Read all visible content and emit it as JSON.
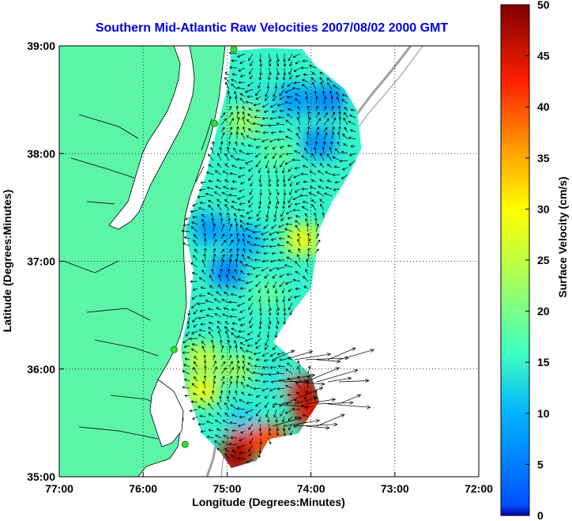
{
  "chart_data": {
    "type": "heatmap",
    "title": "Southern Mid-Atlantic Raw Velocities 2007/08/02 2000 GMT",
    "xlabel": "Longitude (Degrees:Minutes)",
    "ylabel": "Latitude (Degrees:Minutes)",
    "x_ticks": [
      {
        "value": -77,
        "label": "77:00"
      },
      {
        "value": -76,
        "label": "76:00"
      },
      {
        "value": -75,
        "label": "75:00"
      },
      {
        "value": -74,
        "label": "74:00"
      },
      {
        "value": -73,
        "label": "73:00"
      },
      {
        "value": -72,
        "label": "72:00"
      }
    ],
    "y_ticks": [
      {
        "value": 35,
        "label": "35:00"
      },
      {
        "value": 36,
        "label": "36:00"
      },
      {
        "value": 37,
        "label": "37:00"
      },
      {
        "value": 38,
        "label": "38:00"
      },
      {
        "value": 39,
        "label": "39:00"
      }
    ],
    "xlim": [
      -77,
      -72
    ],
    "ylim": [
      35,
      39
    ],
    "grid": "dotted",
    "colorbar": {
      "label": "Surface Velocity (cm/s)",
      "min": 0,
      "max": 50,
      "ticks": [
        "0",
        "5",
        "10",
        "15",
        "20",
        "25",
        "30",
        "35",
        "40",
        "45",
        "50"
      ],
      "colormap": "jet"
    },
    "colors": {
      "land": "#5cf5a8",
      "coast": "#000000",
      "bathymetry": "#a0a0a0",
      "station": "#33dd33",
      "title": "#0000ee"
    },
    "coverage_region": {
      "lon_lat": [
        [
          -74.95,
          38.95
        ],
        [
          -74.55,
          38.98
        ],
        [
          -74.1,
          38.97
        ],
        [
          -73.95,
          38.82
        ],
        [
          -73.6,
          38.6
        ],
        [
          -73.45,
          38.4
        ],
        [
          -73.4,
          38.05
        ],
        [
          -73.55,
          37.8
        ],
        [
          -73.75,
          37.55
        ],
        [
          -73.9,
          37.3
        ],
        [
          -73.95,
          37.0
        ],
        [
          -74.0,
          36.75
        ],
        [
          -74.25,
          36.5
        ],
        [
          -74.45,
          36.25
        ],
        [
          -74.0,
          35.95
        ],
        [
          -73.9,
          35.7
        ],
        [
          -74.15,
          35.4
        ],
        [
          -74.5,
          35.35
        ],
        [
          -74.65,
          35.15
        ],
        [
          -74.95,
          35.08
        ],
        [
          -75.1,
          35.25
        ],
        [
          -75.3,
          35.4
        ],
        [
          -75.5,
          35.85
        ],
        [
          -75.55,
          36.2
        ],
        [
          -75.45,
          36.55
        ],
        [
          -75.4,
          36.9
        ],
        [
          -75.5,
          37.3
        ],
        [
          -75.25,
          37.8
        ],
        [
          -75.1,
          38.3
        ],
        [
          -75.0,
          38.6
        ]
      ]
    },
    "velocity_cells": [
      {
        "lon": -74.6,
        "lat": 38.5,
        "speed": 14
      },
      {
        "lon": -74.2,
        "lat": 38.5,
        "speed": 8
      },
      {
        "lon": -73.8,
        "lat": 38.5,
        "speed": 6
      },
      {
        "lon": -74.8,
        "lat": 38.3,
        "speed": 22
      },
      {
        "lon": -74.4,
        "lat": 38.0,
        "speed": 18
      },
      {
        "lon": -73.9,
        "lat": 38.1,
        "speed": 7
      },
      {
        "lon": -75.2,
        "lat": 37.3,
        "speed": 8
      },
      {
        "lon": -74.8,
        "lat": 37.2,
        "speed": 9
      },
      {
        "lon": -74.4,
        "lat": 37.6,
        "speed": 16
      },
      {
        "lon": -74.1,
        "lat": 37.2,
        "speed": 28
      },
      {
        "lon": -75.0,
        "lat": 36.9,
        "speed": 6
      },
      {
        "lon": -74.5,
        "lat": 36.7,
        "speed": 18
      },
      {
        "lon": -75.3,
        "lat": 36.1,
        "speed": 25
      },
      {
        "lon": -74.9,
        "lat": 36.0,
        "speed": 22
      },
      {
        "lon": -74.4,
        "lat": 35.9,
        "speed": 14
      },
      {
        "lon": -74.1,
        "lat": 35.8,
        "speed": 46
      },
      {
        "lon": -74.0,
        "lat": 35.6,
        "speed": 44
      },
      {
        "lon": -75.3,
        "lat": 35.8,
        "speed": 28
      },
      {
        "lon": -74.8,
        "lat": 35.5,
        "speed": 12
      },
      {
        "lon": -74.8,
        "lat": 35.3,
        "speed": 44
      },
      {
        "lon": -74.5,
        "lat": 35.35,
        "speed": 40
      },
      {
        "lon": -74.9,
        "lat": 35.15,
        "speed": 48
      }
    ],
    "stations": [
      {
        "lon": -74.92,
        "lat": 38.97
      },
      {
        "lon": -75.15,
        "lat": 38.28
      },
      {
        "lon": -75.63,
        "lat": 36.18
      },
      {
        "lon": -75.5,
        "lat": 35.3
      }
    ]
  }
}
